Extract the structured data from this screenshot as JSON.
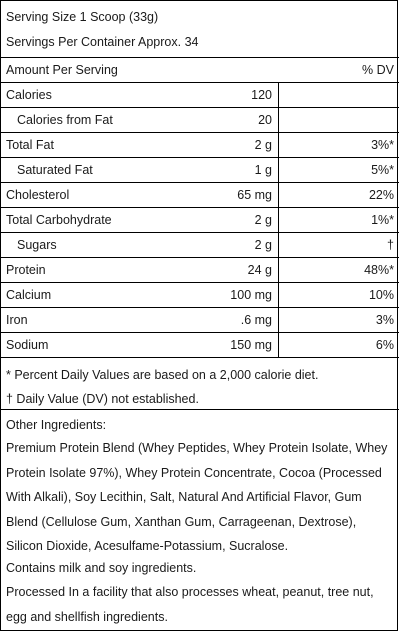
{
  "serving_size": "Serving Size 1 Scoop (33g)",
  "servings_per_container": "Servings Per Container Approx. 34",
  "header": {
    "amount_per_serving": "Amount Per Serving",
    "dv": "% DV"
  },
  "rows": [
    {
      "name": "Calories",
      "amount": "120",
      "dv": ""
    },
    {
      "name": "Calories from Fat",
      "amount": "20",
      "dv": ""
    },
    {
      "name": "Total Fat",
      "amount": "2 g",
      "dv": "3%*"
    },
    {
      "name": "Saturated Fat",
      "amount": "1 g",
      "dv": "5%*"
    },
    {
      "name": "Cholesterol",
      "amount": "65 mg",
      "dv": "22%"
    },
    {
      "name": "Total Carbohydrate",
      "amount": "2 g",
      "dv": "1%*"
    },
    {
      "name": "Sugars",
      "amount": "2 g",
      "dv": "†"
    },
    {
      "name": "Protein",
      "amount": "24 g",
      "dv": "48%*"
    },
    {
      "name": "Calcium",
      "amount": "100 mg",
      "dv": "10%"
    },
    {
      "name": "Iron",
      "amount": ".6 mg",
      "dv": "3%"
    },
    {
      "name": "Sodium",
      "amount": "150 mg",
      "dv": "6%"
    }
  ],
  "footnotes": {
    "percent_dv": "* Percent Daily Values are based on a 2,000 calorie diet.",
    "not_established": "† Daily Value (DV) not established."
  },
  "other_ingredients_label": "Other Ingredients:",
  "ingredients": "Premium Protein Blend (Whey Peptides, Whey Protein Isolate, Whey Protein Isolate 97%), Whey Protein Concentrate, Cocoa (Processed With Alkali), Soy Lecithin, Salt, Natural And Artificial Flavor, Gum Blend (Cellulose Gum, Xanthan Gum, Carrageenan, Dextrose), Silicon Dioxide, Acesulfame-Potassium, Sucralose.",
  "allergen": "Contains milk and soy ingredients.",
  "facility": "Processed In a facility that also processes wheat, peanut, tree nut, egg and shellfish ingredients."
}
